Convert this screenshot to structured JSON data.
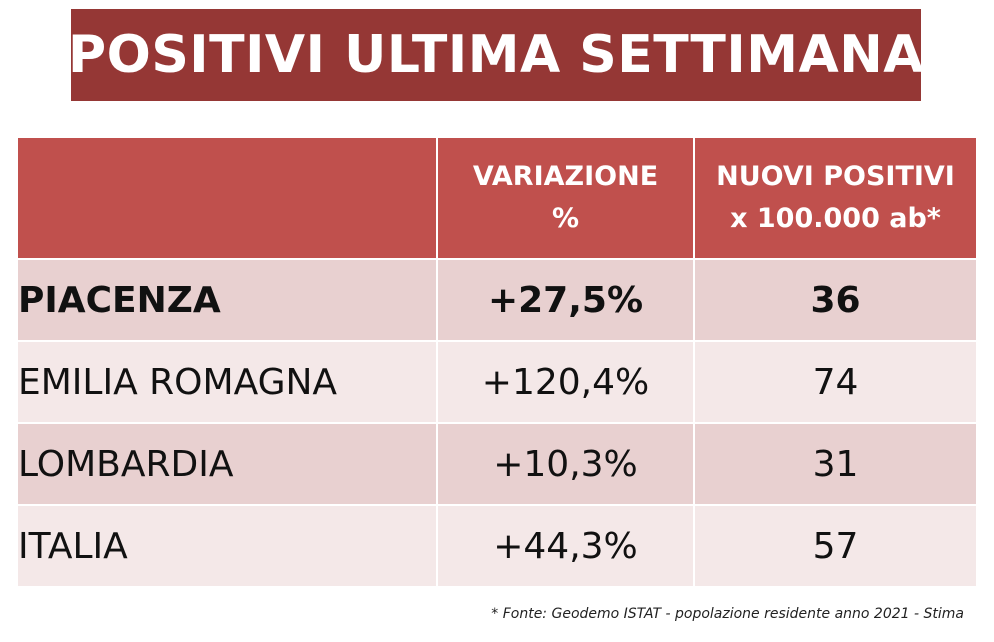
{
  "title": "POSITIVI ULTIMA SETTIMANA",
  "table": {
    "headers": {
      "region": "",
      "variation_line1": "VARIAZIONE",
      "variation_line2": "%",
      "new_positives_line1": "NUOVI POSITIVI",
      "new_positives_line2": "x 100.000 ab*"
    },
    "rows": [
      {
        "region": "PIACENZA",
        "variation": "+27,5%",
        "new_positives": "36"
      },
      {
        "region": "EMILIA ROMAGNA",
        "variation": "+120,4%",
        "new_positives": "74"
      },
      {
        "region": "LOMBARDIA",
        "variation": "+10,3%",
        "new_positives": "31"
      },
      {
        "region": "ITALIA",
        "variation": "+44,3%",
        "new_positives": "57"
      }
    ]
  },
  "footnote": "* Fonte: Geodemo ISTAT - popolazione residente anno 2021 - Stima",
  "colors": {
    "title_background": "#953735",
    "header_background": "#c0504d",
    "row_dark": "#e8d0d0",
    "row_light": "#f4e8e8"
  }
}
